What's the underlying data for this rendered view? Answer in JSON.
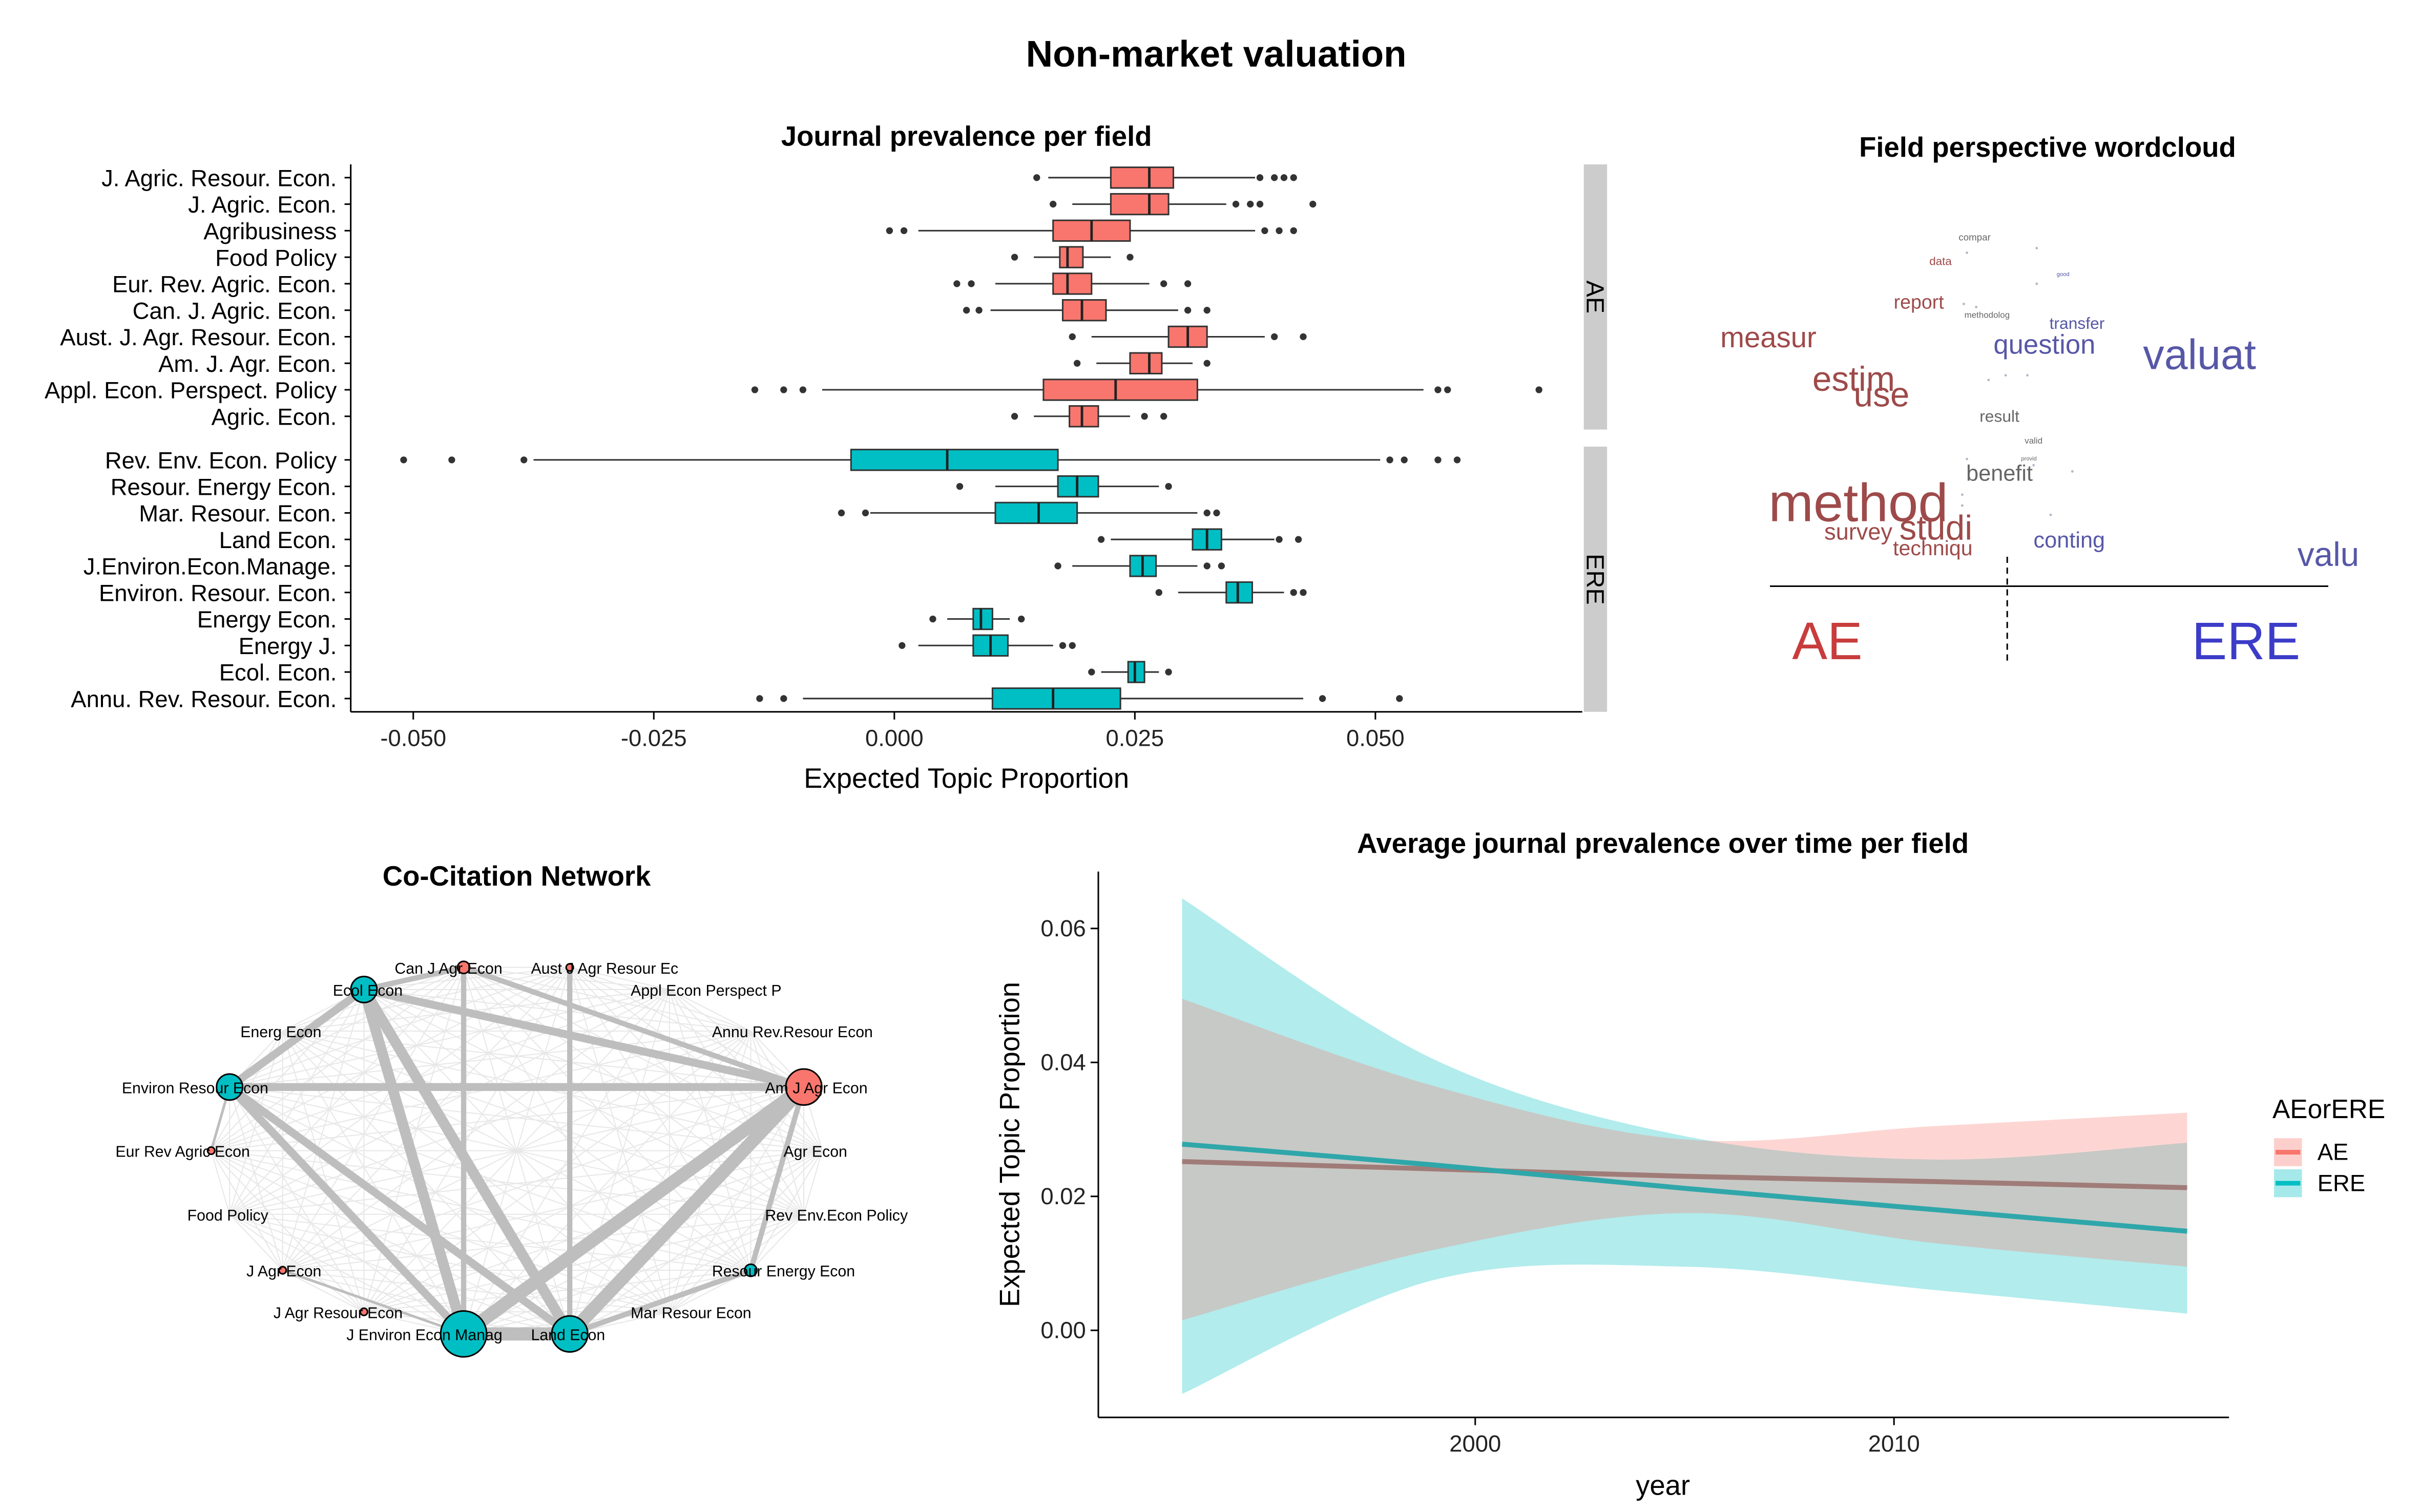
{
  "main_title": "Non-market valuation",
  "colors": {
    "ae": "#F8766D",
    "ere": "#00BFC4",
    "ae_word": "#9E4A4A",
    "ere_word": "#5757A8",
    "ae_big": "#C83C3C",
    "ere_big": "#3C3CC8",
    "strip": "#CCCCCC",
    "box_outline": "#333333",
    "network_edge": "#BEBEBE"
  },
  "chart_data": [
    {
      "type": "box",
      "title": "Journal prevalence per field",
      "xlabel": "Expected Topic Proportion",
      "ylabel": "",
      "xlim": [
        -0.0565,
        0.0715
      ],
      "xticks": [
        -0.05,
        -0.025,
        0.0,
        0.025,
        0.05
      ],
      "xtick_labels": [
        "-0.050",
        "-0.025",
        "0.000",
        "0.025",
        "0.050"
      ],
      "facets": [
        {
          "label": "AE",
          "color": "#F8766D",
          "boxes": [
            {
              "name": "J. Agric. Resour. Econ.",
              "wlo": 0.016,
              "q1": 0.0225,
              "med": 0.0265,
              "q3": 0.029,
              "whi": 0.0375,
              "outliers": [
                0.0148,
                0.038,
                0.0395,
                0.0405,
                0.0415
              ]
            },
            {
              "name": "J. Agric. Econ.",
              "wlo": 0.0185,
              "q1": 0.0225,
              "med": 0.0265,
              "q3": 0.0285,
              "whi": 0.0345,
              "outliers": [
                0.0165,
                0.0355,
                0.037,
                0.038,
                0.0435
              ]
            },
            {
              "name": "Agribusiness",
              "wlo": 0.0025,
              "q1": 0.0165,
              "med": 0.0205,
              "q3": 0.0245,
              "whi": 0.0375,
              "outliers": [
                -0.0005,
                0.001,
                0.0385,
                0.04,
                0.0415
              ]
            },
            {
              "name": "Food Policy",
              "wlo": 0.0145,
              "q1": 0.0172,
              "med": 0.018,
              "q3": 0.0196,
              "whi": 0.0225,
              "outliers": [
                0.0125,
                0.0245
              ]
            },
            {
              "name": "Eur. Rev. Agric. Econ.",
              "wlo": 0.0105,
              "q1": 0.0165,
              "med": 0.018,
              "q3": 0.0205,
              "whi": 0.0265,
              "outliers": [
                0.0065,
                0.008,
                0.028,
                0.0305
              ]
            },
            {
              "name": "Can. J. Agric. Econ.",
              "wlo": 0.01,
              "q1": 0.0175,
              "med": 0.0195,
              "q3": 0.022,
              "whi": 0.0295,
              "outliers": [
                0.0075,
                0.0088,
                0.0305,
                0.0325
              ]
            },
            {
              "name": "Aust. J. Agr. Resour. Econ.",
              "wlo": 0.0205,
              "q1": 0.0285,
              "med": 0.0305,
              "q3": 0.0325,
              "whi": 0.0385,
              "outliers": [
                0.0185,
                0.0395,
                0.0425
              ]
            },
            {
              "name": "Am. J. Agr. Econ.",
              "wlo": 0.021,
              "q1": 0.0245,
              "med": 0.0265,
              "q3": 0.0278,
              "whi": 0.031,
              "outliers": [
                0.019,
                0.0325
              ]
            },
            {
              "name": "Appl. Econ. Perspect. Policy",
              "wlo": -0.0075,
              "q1": 0.0155,
              "med": 0.023,
              "q3": 0.0315,
              "whi": 0.055,
              "outliers": [
                -0.0145,
                -0.0115,
                -0.0095,
                0.0565,
                0.0575,
                0.067
              ]
            },
            {
              "name": "Agric. Econ.",
              "wlo": 0.0145,
              "q1": 0.0182,
              "med": 0.0195,
              "q3": 0.0212,
              "whi": 0.0245,
              "outliers": [
                0.0125,
                0.026,
                0.028
              ]
            }
          ]
        },
        {
          "label": "ERE",
          "color": "#00BFC4",
          "boxes": [
            {
              "name": "Rev. Env. Econ. Policy",
              "wlo": -0.0375,
              "q1": -0.0045,
              "med": 0.0055,
              "q3": 0.017,
              "whi": 0.0505,
              "outliers": [
                -0.051,
                -0.046,
                -0.0385,
                0.0515,
                0.053,
                0.0565,
                0.0585
              ]
            },
            {
              "name": "Resour. Energy Econ.",
              "wlo": 0.0105,
              "q1": 0.017,
              "med": 0.019,
              "q3": 0.0212,
              "whi": 0.0275,
              "outliers": [
                0.0068,
                0.0285
              ]
            },
            {
              "name": "Mar. Resour. Econ.",
              "wlo": -0.0025,
              "q1": 0.0105,
              "med": 0.015,
              "q3": 0.019,
              "whi": 0.0315,
              "outliers": [
                -0.0055,
                -0.003,
                0.0325,
                0.0335
              ]
            },
            {
              "name": "Land Econ.",
              "wlo": 0.0225,
              "q1": 0.031,
              "med": 0.0325,
              "q3": 0.034,
              "whi": 0.0395,
              "outliers": [
                0.0215,
                0.04,
                0.042
              ]
            },
            {
              "name": "J.Environ.Econ.Manage.",
              "wlo": 0.0185,
              "q1": 0.0245,
              "med": 0.0258,
              "q3": 0.0272,
              "whi": 0.0315,
              "outliers": [
                0.017,
                0.0325,
                0.034
              ]
            },
            {
              "name": "Environ. Resour. Econ.",
              "wlo": 0.0295,
              "q1": 0.0345,
              "med": 0.0357,
              "q3": 0.0372,
              "whi": 0.0405,
              "outliers": [
                0.0275,
                0.0415,
                0.0425
              ]
            },
            {
              "name": "Energy Econ.",
              "wlo": 0.0055,
              "q1": 0.0082,
              "med": 0.009,
              "q3": 0.0102,
              "whi": 0.012,
              "outliers": [
                0.004,
                0.0132
              ]
            },
            {
              "name": "Energy J.",
              "wlo": 0.0025,
              "q1": 0.0082,
              "med": 0.01,
              "q3": 0.0118,
              "whi": 0.0165,
              "outliers": [
                0.0008,
                0.0175,
                0.0185
              ]
            },
            {
              "name": "Ecol. Econ.",
              "wlo": 0.0215,
              "q1": 0.0243,
              "med": 0.025,
              "q3": 0.026,
              "whi": 0.0275,
              "outliers": [
                0.0205,
                0.0285
              ]
            },
            {
              "name": "Annu. Rev. Resour. Econ.",
              "wlo": -0.0095,
              "q1": 0.0102,
              "med": 0.0165,
              "q3": 0.0235,
              "whi": 0.0425,
              "outliers": [
                -0.014,
                -0.0115,
                0.0445,
                0.0525
              ]
            }
          ]
        }
      ]
    },
    {
      "type": "line",
      "title": "Average journal prevalence over time per field",
      "xlabel": "year",
      "ylabel": "Expected Topic Proportion",
      "xlim": [
        1991,
        2018
      ],
      "ylim": [
        -0.013,
        0.0685
      ],
      "xticks": [
        2000,
        2010
      ],
      "yticks": [
        0.0,
        0.02,
        0.04,
        0.06
      ],
      "ytick_labels": [
        "0.00",
        "0.02",
        "0.04",
        "0.06"
      ],
      "legend_title": "AEorERE",
      "legend_position": "right",
      "series": [
        {
          "name": "AE",
          "color": "#F8766D",
          "x": [
            1993,
            1999,
            2005,
            2011,
            2017
          ],
          "mean": [
            0.0252,
            0.0241,
            0.023,
            0.0222,
            0.0213
          ],
          "lower": [
            0.0015,
            0.012,
            0.0175,
            0.013,
            0.0095
          ],
          "upper": [
            0.0495,
            0.0365,
            0.0285,
            0.0305,
            0.0325
          ]
        },
        {
          "name": "ERE",
          "color": "#00BFC4",
          "x": [
            1993,
            1999,
            2005,
            2011,
            2017
          ],
          "mean": [
            0.0278,
            0.0247,
            0.0212,
            0.018,
            0.0148
          ],
          "lower": [
            -0.0095,
            0.0075,
            0.0095,
            0.006,
            0.0025
          ],
          "upper": [
            0.0645,
            0.0405,
            0.029,
            0.0255,
            0.028
          ]
        }
      ]
    },
    {
      "type": "network",
      "title": "Co-Citation Network",
      "nodes": [
        {
          "name": "Can J Agr Econ",
          "field": "AE",
          "weight": 0.6
        },
        {
          "name": "Aust J Agr Resour Ec",
          "field": "AE",
          "weight": 0.1
        },
        {
          "name": "Appl Econ Perspect P",
          "field": "AE",
          "weight": 0.0
        },
        {
          "name": "Annu Rev.Resour Econ",
          "field": "ERE",
          "weight": 0.0
        },
        {
          "name": "Am J Agr Econ",
          "field": "AE",
          "weight": 3.0
        },
        {
          "name": "Agr Econ",
          "field": "AE",
          "weight": 0.0
        },
        {
          "name": "Rev Env.Econ Policy",
          "field": "ERE",
          "weight": 0.0
        },
        {
          "name": "Resour Energy Econ",
          "field": "ERE",
          "weight": 0.6
        },
        {
          "name": "Mar Resour Econ",
          "field": "ERE",
          "weight": 0.0
        },
        {
          "name": "Land Econ",
          "field": "ERE",
          "weight": 3.0
        },
        {
          "name": "J Environ Econ Manag",
          "field": "ERE",
          "weight": 4.0
        },
        {
          "name": "J Agr Resour Econ",
          "field": "AE",
          "weight": 0.1
        },
        {
          "name": "J Agr Econ",
          "field": "AE",
          "weight": 0.1
        },
        {
          "name": "Food Policy",
          "field": "AE",
          "weight": 0.0
        },
        {
          "name": "Eur Rev Agric Econ",
          "field": "AE",
          "weight": 0.1
        },
        {
          "name": "Environ Resour Econ",
          "field": "ERE",
          "weight": 2.0
        },
        {
          "name": "Energ Econ",
          "field": "ERE",
          "weight": 0.0
        },
        {
          "name": "Ecol Econ",
          "field": "ERE",
          "weight": 2.0
        }
      ],
      "edges": [
        {
          "from": "J Environ Econ Manag",
          "to": "Land Econ",
          "weight": 5
        },
        {
          "from": "J Environ Econ Manag",
          "to": "Am J Agr Econ",
          "weight": 5
        },
        {
          "from": "Land Econ",
          "to": "Am J Agr Econ",
          "weight": 5
        },
        {
          "from": "Ecol Econ",
          "to": "J Environ Econ Manag",
          "weight": 4
        },
        {
          "from": "Ecol Econ",
          "to": "Land Econ",
          "weight": 4
        },
        {
          "from": "Environ Resour Econ",
          "to": "Land Econ",
          "weight": 3
        },
        {
          "from": "Environ Resour Econ",
          "to": "J Environ Econ Manag",
          "weight": 3
        },
        {
          "from": "Environ Resour Econ",
          "to": "Am J Agr Econ",
          "weight": 3
        },
        {
          "from": "Ecol Econ",
          "to": "Am J Agr Econ",
          "weight": 3
        },
        {
          "from": "Ecol Econ",
          "to": "Environ Resour Econ",
          "weight": 3
        },
        {
          "from": "Ecol Econ",
          "to": "Can J Agr Econ",
          "weight": 2
        },
        {
          "from": "Can J Agr Econ",
          "to": "J Environ Econ Manag",
          "weight": 2
        },
        {
          "from": "Aust J Agr Resour Ec",
          "to": "Land Econ",
          "weight": 2
        },
        {
          "from": "Am J Agr Econ",
          "to": "Can J Agr Econ",
          "weight": 2
        },
        {
          "from": "Am J Agr Econ",
          "to": "Resour Energy Econ",
          "weight": 2
        },
        {
          "from": "Land Econ",
          "to": "Resour Energy Econ",
          "weight": 2
        },
        {
          "from": "J Environ Econ Manag",
          "to": "J Agr Econ",
          "weight": 1
        },
        {
          "from": "Environ Resour Econ",
          "to": "Eur Rev Agric Econ",
          "weight": 1
        }
      ]
    },
    {
      "type": "wordcloud",
      "title": "Field perspective wordcloud",
      "group_labels": [
        "AE",
        "ERE"
      ],
      "words": [
        {
          "text": "compar",
          "size": 1,
          "side": "mid"
        },
        {
          "text": "data",
          "size": 1.2,
          "side": "AE"
        },
        {
          "text": "good",
          "size": 0.6,
          "side": "ERE"
        },
        {
          "text": "report",
          "size": 2,
          "side": "AE"
        },
        {
          "text": "methodolog",
          "size": 0.9,
          "side": "mid"
        },
        {
          "text": "transfer",
          "size": 1.7,
          "side": "ERE"
        },
        {
          "text": "measur",
          "size": 3,
          "side": "AE"
        },
        {
          "text": "question",
          "size": 2.8,
          "side": "ERE"
        },
        {
          "text": "valuat",
          "size": 4.4,
          "side": "ERE"
        },
        {
          "text": "estim",
          "size": 3.6,
          "side": "AE"
        },
        {
          "text": "use",
          "size": 3.6,
          "side": "AE"
        },
        {
          "text": "result",
          "size": 1.7,
          "side": "mid"
        },
        {
          "text": "valid",
          "size": 0.9,
          "side": "mid"
        },
        {
          "text": "provid",
          "size": 0.6,
          "side": "mid"
        },
        {
          "text": "benefit",
          "size": 2.3,
          "side": "mid"
        },
        {
          "text": "method",
          "size": 5.6,
          "side": "AE"
        },
        {
          "text": "studi",
          "size": 3.6,
          "side": "AE"
        },
        {
          "text": "survey",
          "size": 2.4,
          "side": "AE"
        },
        {
          "text": "techniqu",
          "size": 2.2,
          "side": "AE"
        },
        {
          "text": "conting",
          "size": 2.3,
          "side": "ERE"
        },
        {
          "text": "valu",
          "size": 3.5,
          "side": "ERE"
        }
      ]
    }
  ]
}
